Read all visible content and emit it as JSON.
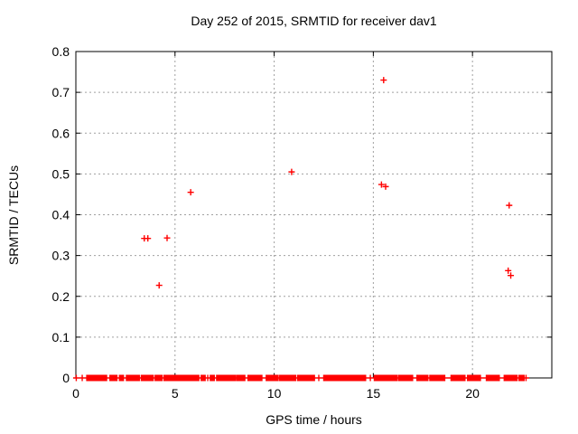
{
  "window": {
    "background": "#ffffff"
  },
  "colors": {
    "marker": "#ff0000",
    "grid": "#a0a0a0",
    "axis": "#000000",
    "text": "#000000"
  },
  "chart_data": {
    "type": "scatter",
    "title": "Day 252 of 2015, SRMTID for receiver dav1",
    "xlabel": "GPS time / hours",
    "ylabel": "SRMTID / TECUs",
    "xlim": [
      0,
      24
    ],
    "ylim": [
      0,
      0.8
    ],
    "xticks": [
      0,
      5,
      10,
      15,
      20
    ],
    "yticks": [
      0,
      0.1,
      0.2,
      0.3,
      0.4,
      0.5,
      0.6,
      0.7,
      0.8
    ],
    "grid": true,
    "legend": "none",
    "marker_style": "plus",
    "series": [
      {
        "name": "SRMTID",
        "points": [
          [
            3.45,
            0.342
          ],
          [
            3.63,
            0.342
          ],
          [
            4.2,
            0.227
          ],
          [
            4.6,
            0.343
          ],
          [
            5.79,
            0.455
          ],
          [
            10.88,
            0.505
          ],
          [
            15.41,
            0.474
          ],
          [
            15.52,
            0.73
          ],
          [
            15.62,
            0.469
          ],
          [
            21.8,
            0.263
          ],
          [
            21.85,
            0.423
          ],
          [
            21.93,
            0.251
          ]
        ]
      }
    ],
    "zero_band": {
      "y": 0,
      "singles": [
        0.02,
        0.32,
        6.65,
        12.25,
        14.85,
        22.7
      ],
      "segments": [
        [
          0.55,
          1.58
        ],
        [
          1.72,
          2.08
        ],
        [
          2.2,
          2.42
        ],
        [
          2.55,
          3.22
        ],
        [
          3.3,
          3.9
        ],
        [
          4.0,
          4.35
        ],
        [
          4.45,
          5.15
        ],
        [
          5.2,
          6.2
        ],
        [
          6.32,
          6.55
        ],
        [
          6.78,
          7.0
        ],
        [
          7.1,
          8.05
        ],
        [
          8.12,
          8.55
        ],
        [
          8.68,
          9.42
        ],
        [
          9.6,
          10.2
        ],
        [
          10.28,
          11.1
        ],
        [
          11.18,
          12.05
        ],
        [
          12.5,
          13.5
        ],
        [
          13.56,
          14.65
        ],
        [
          15.05,
          16.2
        ],
        [
          16.28,
          17.0
        ],
        [
          17.2,
          17.75
        ],
        [
          17.85,
          18.6
        ],
        [
          18.92,
          19.65
        ],
        [
          19.75,
          20.4
        ],
        [
          20.7,
          21.35
        ],
        [
          21.6,
          22.28
        ],
        [
          22.35,
          22.6
        ]
      ]
    }
  }
}
